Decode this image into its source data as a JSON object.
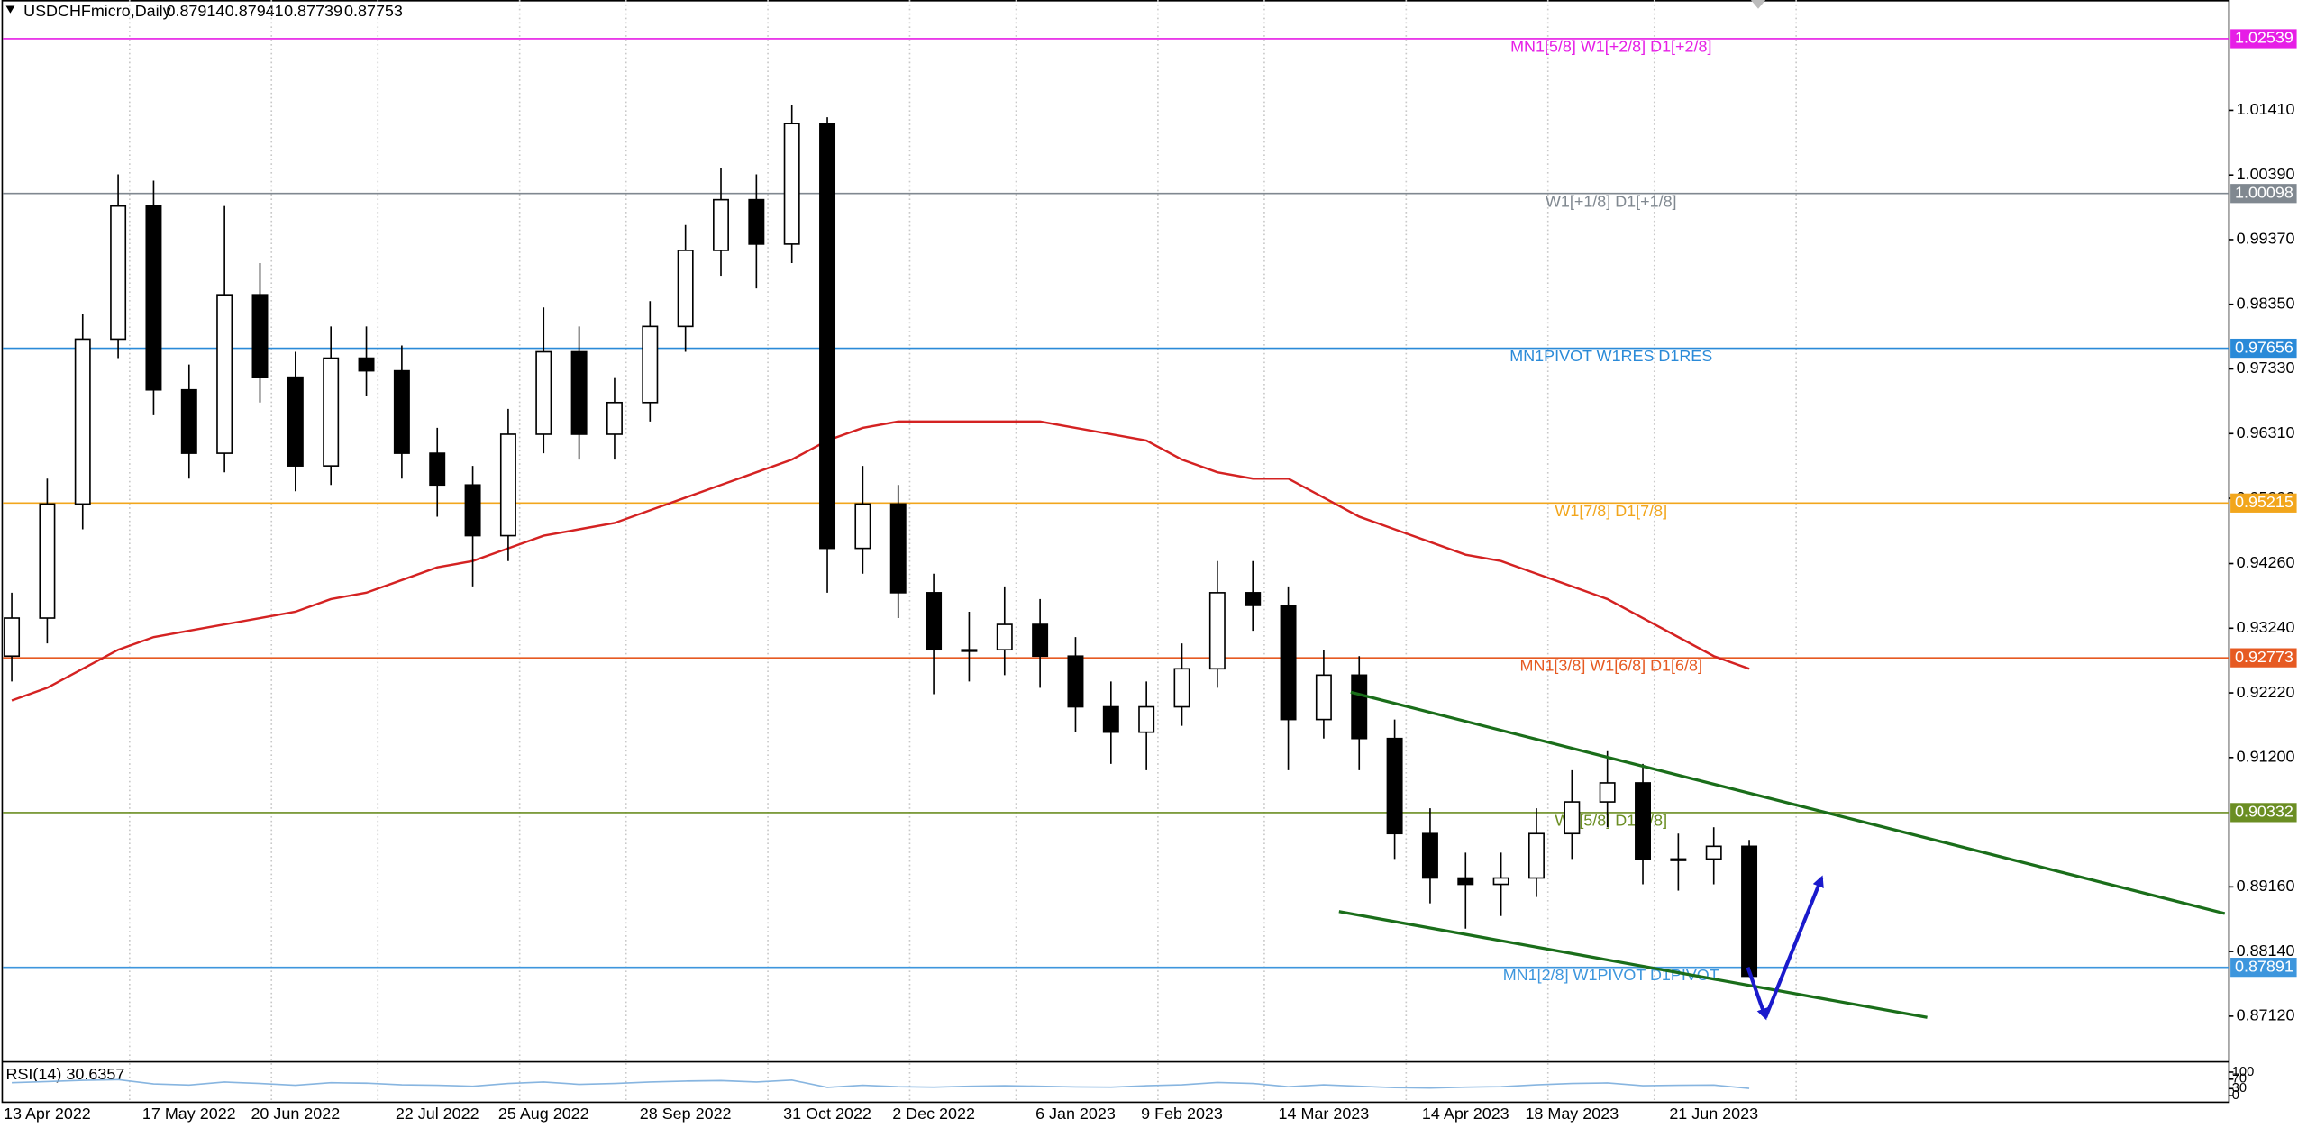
{
  "chart_data": {
    "type": "candlestick",
    "symbol": "USDCHFmicro,Daily",
    "quote": [
      0.87914,
      0.87941,
      0.87739,
      0.87753
    ],
    "categories": [
      null,
      "13 Apr 2022",
      null,
      null,
      null,
      "17 May 2022",
      null,
      null,
      "20 Jun 2022",
      null,
      null,
      null,
      "22 Jul 2022",
      null,
      null,
      "25 Aug 2022",
      null,
      null,
      null,
      "28 Sep 2022",
      null,
      null,
      null,
      "31 Oct 2022",
      null,
      null,
      "2 Dec 2022",
      null,
      null,
      null,
      "6 Jan 2023",
      null,
      null,
      "9 Feb 2023",
      null,
      null,
      null,
      "14 Mar 2023",
      null,
      null,
      null,
      "14 Apr 2023",
      null,
      null,
      "18 May 2023",
      null,
      null,
      null,
      "21 Jun 2023",
      null
    ],
    "open": [
      0.928,
      0.934,
      0.952,
      0.978,
      0.999,
      0.97,
      0.96,
      0.985,
      0.972,
      0.958,
      0.975,
      0.973,
      0.96,
      0.955,
      0.947,
      0.963,
      0.976,
      0.963,
      0.968,
      0.98,
      0.992,
      1.0,
      0.993,
      1.012,
      0.945,
      0.952,
      0.938,
      0.929,
      0.929,
      0.933,
      0.928,
      0.92,
      0.916,
      0.92,
      0.926,
      0.938,
      0.936,
      0.918,
      0.925,
      0.915,
      0.9,
      0.893,
      0.892,
      0.893,
      0.9,
      0.905,
      0.908,
      0.896,
      0.896,
      0.898
    ],
    "high": [
      0.938,
      0.956,
      0.982,
      1.004,
      1.003,
      0.974,
      0.999,
      0.99,
      0.976,
      0.98,
      0.98,
      0.977,
      0.964,
      0.958,
      0.967,
      0.983,
      0.98,
      0.972,
      0.984,
      0.996,
      1.005,
      1.004,
      1.015,
      1.013,
      0.958,
      0.955,
      0.941,
      0.935,
      0.939,
      0.937,
      0.931,
      0.924,
      0.924,
      0.93,
      0.943,
      0.943,
      0.939,
      0.929,
      0.928,
      0.918,
      0.904,
      0.897,
      0.897,
      0.904,
      0.91,
      0.913,
      0.911,
      0.9,
      0.901,
      0.899
    ],
    "low": [
      0.924,
      0.93,
      0.948,
      0.975,
      0.966,
      0.956,
      0.957,
      0.968,
      0.954,
      0.955,
      0.969,
      0.956,
      0.95,
      0.939,
      0.943,
      0.96,
      0.959,
      0.959,
      0.965,
      0.976,
      0.988,
      0.986,
      0.99,
      0.938,
      0.941,
      0.934,
      0.922,
      0.924,
      0.925,
      0.923,
      0.916,
      0.911,
      0.91,
      0.917,
      0.923,
      0.932,
      0.91,
      0.915,
      0.91,
      0.896,
      0.889,
      0.885,
      0.887,
      0.89,
      0.896,
      0.901,
      0.892,
      0.891,
      0.892,
      0.8774
    ],
    "close": [
      0.934,
      0.952,
      0.978,
      0.999,
      0.97,
      0.96,
      0.985,
      0.972,
      0.958,
      0.975,
      0.973,
      0.96,
      0.955,
      0.947,
      0.963,
      0.976,
      0.963,
      0.968,
      0.98,
      0.992,
      1.0,
      0.993,
      1.012,
      0.945,
      0.952,
      0.938,
      0.929,
      0.929,
      0.933,
      0.928,
      0.92,
      0.916,
      0.92,
      0.926,
      0.938,
      0.936,
      0.918,
      0.925,
      0.915,
      0.9,
      0.893,
      0.892,
      0.893,
      0.9,
      0.905,
      0.908,
      0.896,
      0.896,
      0.898,
      0.8775
    ],
    "ylim": [
      0.864,
      1.0315
    ],
    "yticks": [
      {
        "value": 1.0141,
        "label": "1.01410"
      },
      {
        "value": 1.0039,
        "label": "1.00390"
      },
      {
        "value": 0.9937,
        "label": "0.99370"
      },
      {
        "value": 0.9835,
        "label": "0.98350"
      },
      {
        "value": 0.9733,
        "label": "0.97330"
      },
      {
        "value": 0.9631,
        "label": "0.96310"
      },
      {
        "value": 0.9529,
        "label": "0.95290"
      },
      {
        "value": 0.9426,
        "label": "0.94260"
      },
      {
        "value": 0.9324,
        "label": "0.93240"
      },
      {
        "value": 0.9222,
        "label": "0.92220"
      },
      {
        "value": 0.912,
        "label": "0.91200"
      },
      {
        "value": 0.8916,
        "label": "0.89160"
      },
      {
        "value": 0.8814,
        "label": "0.88140"
      },
      {
        "value": 0.8712,
        "label": "0.87120"
      }
    ],
    "moving_average": {
      "color": "#d42222",
      "values": [
        0.921,
        0.923,
        0.926,
        0.929,
        0.931,
        0.932,
        0.933,
        0.934,
        0.935,
        0.937,
        0.938,
        0.94,
        0.942,
        0.943,
        0.945,
        0.947,
        0.948,
        0.949,
        0.951,
        0.953,
        0.955,
        0.957,
        0.959,
        0.962,
        0.964,
        0.965,
        0.965,
        0.965,
        0.965,
        0.965,
        0.964,
        0.963,
        0.962,
        0.959,
        0.957,
        0.956,
        0.956,
        0.953,
        0.95,
        0.948,
        0.946,
        0.944,
        0.943,
        0.941,
        0.939,
        0.937,
        0.934,
        0.931,
        0.928,
        0.926
      ]
    },
    "levels": [
      {
        "value": 1.02539,
        "label": "MN1[5/8] W1[+2/8] D1[+2/8]",
        "color": "#e61ee6"
      },
      {
        "value": 1.00098,
        "label": "W1[+1/8] D1[+1/8]",
        "color": "#808890"
      },
      {
        "value": 0.97656,
        "label": "MN1PIVOT W1RES D1RES",
        "color": "#2a8ad8"
      },
      {
        "value": 0.95215,
        "label": "W1[7/8] D1[7/8]",
        "color": "#f2a61c"
      },
      {
        "value": 0.92773,
        "label": "MN1[3/8] W1[6/8] D1[6/8]",
        "color": "#e65a22"
      },
      {
        "value": 0.90332,
        "label": "W1[5/8] D1[5/8]",
        "color": "#6b8e23"
      },
      {
        "value": 0.87891,
        "label": "MN1[2/8] W1PIVOT D1PIVOT",
        "color": "#3d96dd"
      }
    ],
    "trendlines": [
      {
        "color": "#1a6e1a",
        "points": [
          [
            37.76,
            0.9223
          ],
          [
            62.41,
            0.8874
          ]
        ]
      },
      {
        "color": "#1a6e1a",
        "points": [
          [
            37.43,
            0.8877
          ],
          [
            54.02,
            0.871
          ]
        ]
      }
    ],
    "arrow": {
      "color": "#1a1acc",
      "points": [
        [
          48.96,
          0.8789
        ],
        [
          49.46,
          0.871
        ],
        [
          51.04,
          0.893
        ]
      ]
    },
    "rsi": {
      "label": "RSI(14)",
      "value": 30.6357,
      "color": "#87b5e0",
      "ylim": [
        0,
        100
      ],
      "yticks": [
        100,
        70,
        30,
        0
      ],
      "values": [
        55,
        60,
        65,
        68,
        50,
        45,
        58,
        52,
        44,
        55,
        53,
        46,
        44,
        40,
        52,
        58,
        48,
        52,
        58,
        62,
        64,
        58,
        66,
        35,
        44,
        38,
        36,
        40,
        42,
        40,
        37,
        36,
        42,
        46,
        56,
        52,
        38,
        46,
        40,
        34,
        32,
        36,
        38,
        46,
        52,
        54,
        42,
        44,
        45,
        30.6357
      ]
    }
  }
}
